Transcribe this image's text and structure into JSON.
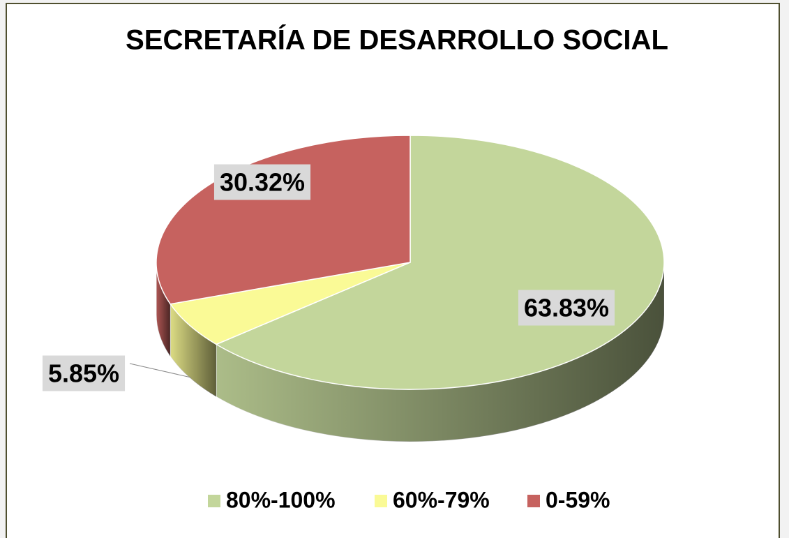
{
  "chart_data": {
    "type": "pie",
    "title": "SECRETARÍA DE DESARROLLO SOCIAL",
    "categories": [
      "80%-100%",
      "60%-79%",
      "0-59%"
    ],
    "values": [
      63.83,
      5.85,
      30.32
    ],
    "value_labels": [
      "63.83%",
      "5.85%",
      "30.32%"
    ],
    "colors": [
      "#c3d69b",
      "#fafa96",
      "#c6625f"
    ],
    "legend": "bottom",
    "three_d": true
  }
}
